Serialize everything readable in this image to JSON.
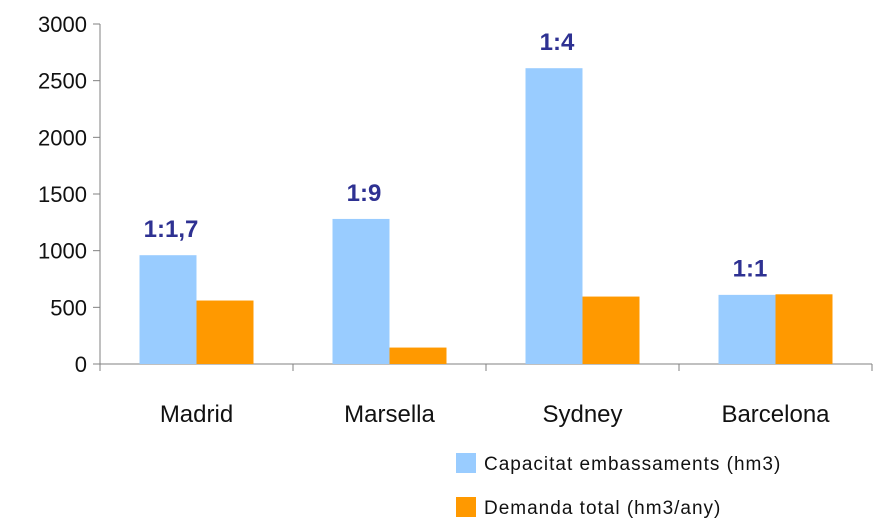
{
  "chart_data": {
    "type": "bar",
    "categories": [
      "Madrid",
      "Marsella",
      "Sydney",
      "Barcelona"
    ],
    "series": [
      {
        "name": "Capacitat embassaments (hm3)",
        "values": [
          960,
          1280,
          2610,
          610
        ],
        "color": "#99CCFF"
      },
      {
        "name": "Demanda total (hm3/any)",
        "values": [
          560,
          145,
          595,
          615
        ],
        "color": "#FF9900"
      }
    ],
    "annotations": [
      "1:1,7",
      "1:9",
      "1:4",
      "1:1"
    ],
    "ylim": [
      0,
      3000
    ],
    "yticks": [
      0,
      500,
      1000,
      1500,
      2000,
      2500,
      3000
    ],
    "grid": false,
    "legend_position": "bottom-right"
  }
}
